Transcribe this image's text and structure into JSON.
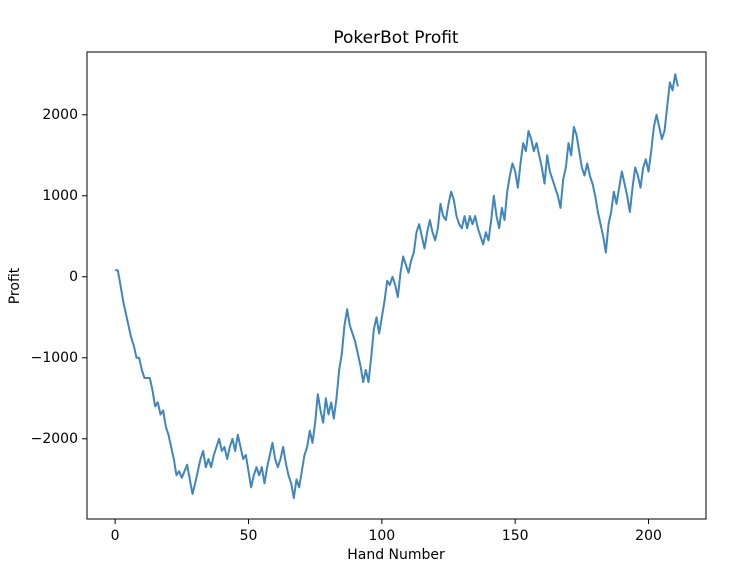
{
  "chart_data": {
    "type": "line",
    "title": "PokerBot Profit",
    "xlabel": "Hand Number",
    "ylabel": "Profit",
    "x": [
      0,
      1,
      2,
      3,
      4,
      5,
      6,
      7,
      8,
      9,
      10,
      11,
      12,
      13,
      14,
      15,
      16,
      17,
      18,
      19,
      20,
      21,
      22,
      23,
      24,
      25,
      26,
      27,
      28,
      29,
      30,
      31,
      32,
      33,
      34,
      35,
      36,
      37,
      38,
      39,
      40,
      41,
      42,
      43,
      44,
      45,
      46,
      47,
      48,
      49,
      50,
      51,
      52,
      53,
      54,
      55,
      56,
      57,
      58,
      59,
      60,
      61,
      62,
      63,
      64,
      65,
      66,
      67,
      68,
      69,
      70,
      71,
      72,
      73,
      74,
      75,
      76,
      77,
      78,
      79,
      80,
      81,
      82,
      83,
      84,
      85,
      86,
      87,
      88,
      89,
      90,
      91,
      92,
      93,
      94,
      95,
      96,
      97,
      98,
      99,
      100,
      101,
      102,
      103,
      104,
      105,
      106,
      107,
      108,
      109,
      110,
      111,
      112,
      113,
      114,
      115,
      116,
      117,
      118,
      119,
      120,
      121,
      122,
      123,
      124,
      125,
      126,
      127,
      128,
      129,
      130,
      131,
      132,
      133,
      134,
      135,
      136,
      137,
      138,
      139,
      140,
      141,
      142,
      143,
      144,
      145,
      146,
      147,
      148,
      149,
      150,
      151,
      152,
      153,
      154,
      155,
      156,
      157,
      158,
      159,
      160,
      161,
      162,
      163,
      164,
      165,
      166,
      167,
      168,
      169,
      170,
      171,
      172,
      173,
      174,
      175,
      176,
      177,
      178,
      179,
      180,
      181,
      182,
      183,
      184,
      185,
      186,
      187,
      188,
      189,
      190,
      191,
      192,
      193,
      194,
      195,
      196,
      197,
      198,
      199,
      200,
      201,
      202,
      203,
      204,
      205,
      206,
      207,
      208,
      209,
      210,
      211
    ],
    "values": [
      80,
      80,
      -100,
      -300,
      -450,
      -600,
      -750,
      -850,
      -1000,
      -1000,
      -1150,
      -1250,
      -1250,
      -1250,
      -1400,
      -1600,
      -1550,
      -1700,
      -1650,
      -1850,
      -1950,
      -2100,
      -2250,
      -2450,
      -2400,
      -2480,
      -2400,
      -2320,
      -2500,
      -2680,
      -2550,
      -2400,
      -2250,
      -2150,
      -2350,
      -2250,
      -2350,
      -2200,
      -2100,
      -2000,
      -2150,
      -2100,
      -2250,
      -2100,
      -2000,
      -2150,
      -1950,
      -2100,
      -2250,
      -2200,
      -2400,
      -2600,
      -2450,
      -2350,
      -2450,
      -2350,
      -2550,
      -2350,
      -2200,
      -2050,
      -2250,
      -2350,
      -2250,
      -2100,
      -2300,
      -2450,
      -2550,
      -2730,
      -2500,
      -2600,
      -2400,
      -2200,
      -2100,
      -1900,
      -2050,
      -1800,
      -1450,
      -1650,
      -1800,
      -1500,
      -1700,
      -1550,
      -1750,
      -1500,
      -1150,
      -950,
      -600,
      -400,
      -600,
      -700,
      -800,
      -950,
      -1100,
      -1300,
      -1150,
      -1300,
      -1000,
      -650,
      -500,
      -700,
      -500,
      -300,
      -50,
      -100,
      0,
      -100,
      -250,
      50,
      250,
      150,
      50,
      200,
      300,
      550,
      650,
      500,
      350,
      550,
      700,
      550,
      450,
      600,
      900,
      750,
      700,
      900,
      1050,
      950,
      750,
      650,
      600,
      750,
      600,
      750,
      650,
      750,
      600,
      500,
      400,
      550,
      450,
      700,
      1000,
      750,
      600,
      850,
      700,
      1050,
      1250,
      1400,
      1300,
      1100,
      1400,
      1650,
      1550,
      1800,
      1700,
      1550,
      1650,
      1500,
      1350,
      1150,
      1500,
      1300,
      1200,
      1100,
      1000,
      850,
      1200,
      1350,
      1650,
      1500,
      1850,
      1750,
      1550,
      1350,
      1250,
      1400,
      1250,
      1150,
      1000,
      800,
      650,
      500,
      300,
      650,
      800,
      1050,
      900,
      1100,
      1300,
      1150,
      1000,
      800,
      1100,
      1350,
      1250,
      1100,
      1350,
      1450,
      1300,
      1550,
      1850,
      2000,
      1850,
      1700,
      1800,
      2100,
      2400,
      2300,
      2500,
      2350
    ],
    "color": "#3f86bd",
    "xlim": [
      -10.55,
      221.55
    ],
    "xticks": [
      0,
      50,
      100,
      150,
      200
    ],
    "ylim": [
      -2990,
      2775
    ],
    "yticks": [
      {
        "value": -2000,
        "label": "−2000"
      },
      {
        "value": -1000,
        "label": "−1000"
      },
      0,
      1000,
      2000
    ]
  }
}
